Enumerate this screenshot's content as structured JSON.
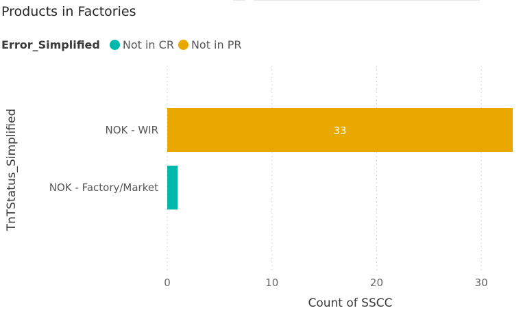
{
  "title": "Products in Factories",
  "legend": {
    "title": "Error_Simplified",
    "items": [
      {
        "label": "Not in CR",
        "color": "#01B8AA"
      },
      {
        "label": "Not in PR",
        "color": "#E8A800"
      }
    ]
  },
  "chart_data": {
    "type": "bar",
    "orientation": "horizontal",
    "stacked": true,
    "title": "Products in Factories",
    "xlabel": "Count of SSCC",
    "ylabel": "TnTStatus_Simplified",
    "categories": [
      "NOK - WIR",
      "NOK - Factory/Market"
    ],
    "series": [
      {
        "name": "Not in CR",
        "color": "#01B8AA",
        "values": [
          0,
          1
        ]
      },
      {
        "name": "Not in PR",
        "color": "#E8A800",
        "values": [
          33,
          0
        ]
      }
    ],
    "data_labels": [
      {
        "series": "Not in PR",
        "category": "NOK - WIR",
        "text": "33"
      }
    ],
    "xticks": [
      0,
      10,
      20,
      30
    ],
    "xlim": [
      0,
      33
    ],
    "grid": "vertical dotted",
    "legend_position": "top-left"
  }
}
